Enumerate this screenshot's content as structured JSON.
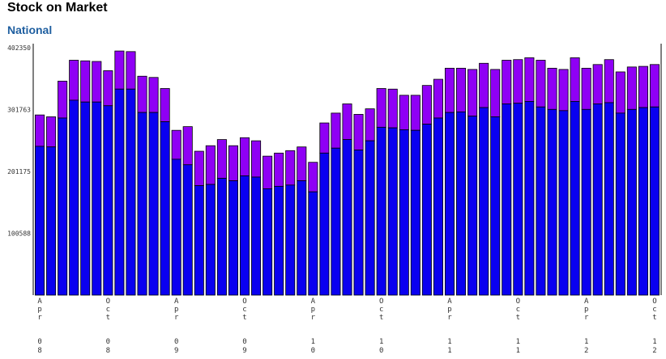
{
  "header": {
    "title": "Stock on Market",
    "subtitle": "National",
    "subtitle_color": "#1f5fa0"
  },
  "chart_data": {
    "type": "bar",
    "stacked": true,
    "grid": false,
    "legend": "none",
    "ylim": [
      0,
      402350
    ],
    "yticks": [
      100588,
      201175,
      301763,
      402350
    ],
    "x_tick_labels": [
      {
        "index": 0,
        "month": "Apr",
        "year": "08"
      },
      {
        "index": 6,
        "month": "Oct",
        "year": "08"
      },
      {
        "index": 12,
        "month": "Apr",
        "year": "09"
      },
      {
        "index": 18,
        "month": "Oct",
        "year": "09"
      },
      {
        "index": 24,
        "month": "Apr",
        "year": "10"
      },
      {
        "index": 30,
        "month": "Oct",
        "year": "10"
      },
      {
        "index": 36,
        "month": "Apr",
        "year": "11"
      },
      {
        "index": 42,
        "month": "Oct",
        "year": "11"
      },
      {
        "index": 48,
        "month": "Apr",
        "year": "12"
      },
      {
        "index": 54,
        "month": "Oct",
        "year": "12"
      }
    ],
    "colors": {
      "lower": "#0a00f0",
      "upper": "#8f00f5",
      "outline": "#000000"
    },
    "series": [
      {
        "key": "lower",
        "values": [
          242000,
          241000,
          288000,
          317000,
          314000,
          314000,
          308000,
          335000,
          335000,
          297000,
          297000,
          282000,
          221000,
          212000,
          178000,
          180000,
          190000,
          186000,
          194000,
          192000,
          173000,
          177000,
          179000,
          186000,
          168000,
          231000,
          239000,
          253000,
          236000,
          251000,
          273000,
          272000,
          269000,
          268000,
          278000,
          288000,
          297000,
          298000,
          291000,
          305000,
          290000,
          311000,
          312000,
          315000,
          306000,
          302000,
          300000,
          315000,
          302000,
          311000,
          313000,
          296000,
          302000,
          305000,
          306000
        ]
      },
      {
        "key": "upper",
        "values": [
          51000,
          49000,
          60000,
          65000,
          67000,
          66000,
          57000,
          62000,
          61000,
          59000,
          57000,
          54000,
          47000,
          62000,
          56000,
          63000,
          63000,
          57000,
          62000,
          59000,
          53000,
          54000,
          56000,
          55000,
          48000,
          49000,
          57000,
          58000,
          58000,
          52000,
          63000,
          63000,
          56000,
          57000,
          63000,
          63000,
          72000,
          71000,
          76000,
          72000,
          77000,
          71000,
          71000,
          71000,
          76000,
          67000,
          67000,
          71000,
          67000,
          64000,
          70000,
          67000,
          69000,
          67000,
          69000
        ]
      }
    ]
  }
}
